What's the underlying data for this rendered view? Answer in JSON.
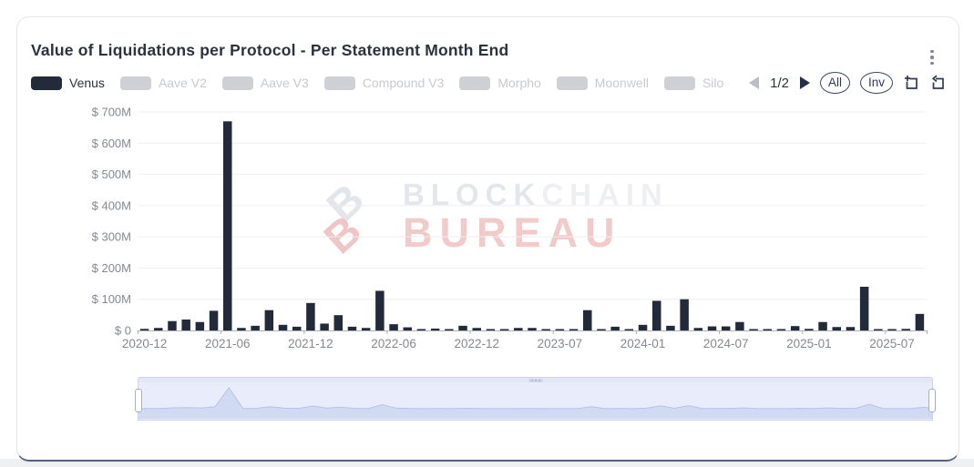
{
  "card": {
    "title": "Value of Liquidations per Protocol - Per Statement Month End"
  },
  "legend": {
    "items": [
      {
        "label": "Venus",
        "active": true
      },
      {
        "label": "Aave V2",
        "active": false
      },
      {
        "label": "Aave V3",
        "active": false
      },
      {
        "label": "Compound V3",
        "active": false
      },
      {
        "label": "Morpho",
        "active": false
      },
      {
        "label": "Moonwell",
        "active": false
      },
      {
        "label": "Silo",
        "active": false
      }
    ],
    "pagination": {
      "label": "1/2",
      "prev_enabled": false,
      "next_enabled": true
    },
    "buttons": {
      "all": "All",
      "inv": "Inv"
    },
    "tools": [
      "zoom-select-icon",
      "zoom-reset-icon"
    ]
  },
  "watermark": {
    "line1_a": "BLOCK",
    "line1_b": "CHAIN",
    "line2": "BUREAU"
  },
  "colors": {
    "bar": "#232b3b",
    "title_text": "#2b3240",
    "axis_label": "#85898f",
    "grid_line": "#ededf1",
    "axis_line": "#b0b3ba",
    "inactive_swatch": "#ced0d5",
    "control_navy": "#2f3b55",
    "nav_fill": "#ccd6f1",
    "nav_stroke": "#b6c2e8",
    "watermark_red": "#f3caca"
  },
  "chart_data": {
    "type": "bar",
    "title": "Value of Liquidations per Protocol - Per Statement Month End",
    "series_name": "Venus",
    "unit": "USD millions",
    "xlabel": "",
    "ylabel": "",
    "ylim": [
      0,
      700
    ],
    "grid": true,
    "legend_position": "top",
    "y_ticks": [
      "$ 0",
      "$ 100M",
      "$ 200M",
      "$ 300M",
      "$ 400M",
      "$ 500M",
      "$ 600M",
      "$ 700M"
    ],
    "x_tick_labels": [
      "2020-12",
      "2021-06",
      "2021-12",
      "2022-06",
      "2022-12",
      "2023-07",
      "2024-01",
      "2024-07",
      "2025-01",
      "2025-07"
    ],
    "categories": [
      "2020-12",
      "2021-01",
      "2021-02",
      "2021-03",
      "2021-04",
      "2021-05",
      "2021-06",
      "2021-07",
      "2021-08",
      "2021-09",
      "2021-10",
      "2021-11",
      "2021-12",
      "2022-01",
      "2022-02",
      "2022-03",
      "2022-04",
      "2022-05",
      "2022-06",
      "2022-07",
      "2022-08",
      "2022-09",
      "2022-10",
      "2022-11",
      "2022-12",
      "2023-02",
      "2023-03",
      "2023-04",
      "2023-05",
      "2023-06",
      "2023-07",
      "2023-08",
      "2023-09",
      "2023-10",
      "2023-11",
      "2023-12",
      "2024-01",
      "2024-02",
      "2024-03",
      "2024-04",
      "2024-05",
      "2024-06",
      "2024-07",
      "2024-08",
      "2024-09",
      "2024-10",
      "2024-11",
      "2024-12",
      "2025-01",
      "2025-02",
      "2025-03",
      "2025-04",
      "2025-05",
      "2025-06",
      "2025-07",
      "2025-08",
      "2025-09"
    ],
    "values": [
      5,
      8,
      30,
      35,
      27,
      63,
      670,
      8,
      15,
      65,
      18,
      12,
      88,
      22,
      49,
      12,
      8,
      127,
      20,
      10,
      2,
      6,
      2,
      15,
      8,
      4,
      4,
      8,
      8,
      3,
      2,
      2,
      65,
      3,
      12,
      2,
      18,
      95,
      15,
      100,
      8,
      13,
      13,
      27,
      2,
      3,
      2,
      14,
      5,
      27,
      11,
      11,
      140,
      3,
      2,
      5,
      53
    ]
  }
}
